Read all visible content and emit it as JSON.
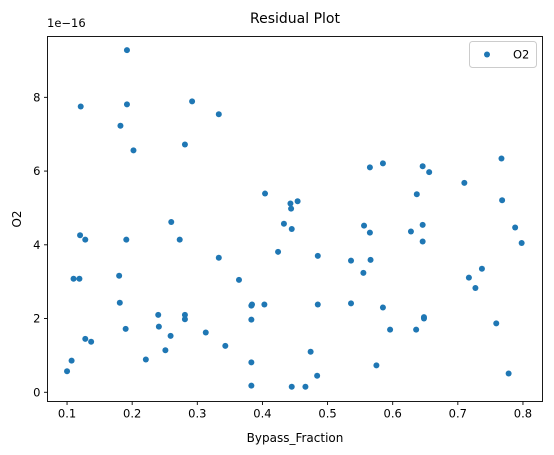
{
  "chart_data": {
    "type": "scatter",
    "title": "Residual Plot",
    "xlabel": "Bypass_Fraction",
    "ylabel": "O2",
    "offset_text": "1e−16",
    "xlim": [
      0.07,
      0.83
    ],
    "ylim": [
      -0.25,
      9.65
    ],
    "xticks": [
      0.1,
      0.2,
      0.3,
      0.4,
      0.5,
      0.6,
      0.7,
      0.8
    ],
    "xtick_labels": [
      "0.1",
      "0.2",
      "0.3",
      "0.4",
      "0.5",
      "0.6",
      "0.7",
      "0.8"
    ],
    "yticks": [
      0,
      2,
      4,
      6,
      8
    ],
    "ytick_labels": [
      "0",
      "2",
      "4",
      "6",
      "8"
    ],
    "grid": false,
    "legend_position": "top-right",
    "series": [
      {
        "name": "O2",
        "color": "#1f77b4",
        "x": [
          0.1,
          0.107,
          0.11,
          0.119,
          0.12,
          0.121,
          0.128,
          0.128,
          0.137,
          0.18,
          0.181,
          0.182,
          0.19,
          0.191,
          0.192,
          0.192,
          0.202,
          0.221,
          0.24,
          0.241,
          0.251,
          0.259,
          0.26,
          0.273,
          0.281,
          0.281,
          0.281,
          0.292,
          0.313,
          0.333,
          0.333,
          0.343,
          0.364,
          0.383,
          0.383,
          0.383,
          0.383,
          0.384,
          0.403,
          0.404,
          0.424,
          0.433,
          0.443,
          0.444,
          0.445,
          0.445,
          0.454,
          0.466,
          0.474,
          0.484,
          0.485,
          0.485,
          0.536,
          0.536,
          0.555,
          0.556,
          0.565,
          0.565,
          0.566,
          0.575,
          0.585,
          0.585,
          0.596,
          0.628,
          0.636,
          0.637,
          0.646,
          0.646,
          0.646,
          0.648,
          0.648,
          0.656,
          0.71,
          0.717,
          0.727,
          0.737,
          0.759,
          0.767,
          0.768,
          0.778,
          0.788,
          0.798
        ],
        "y": [
          0.57,
          0.86,
          3.08,
          3.08,
          4.26,
          7.75,
          1.45,
          4.14,
          1.37,
          3.16,
          2.43,
          7.23,
          1.72,
          4.14,
          7.81,
          9.28,
          6.56,
          0.89,
          2.1,
          1.78,
          1.14,
          1.53,
          4.62,
          4.14,
          2.1,
          1.98,
          6.72,
          7.89,
          1.62,
          7.54,
          3.65,
          1.26,
          3.05,
          2.35,
          1.97,
          0.81,
          0.18,
          2.38,
          2.38,
          5.39,
          3.81,
          4.57,
          5.12,
          4.98,
          4.43,
          0.15,
          5.18,
          0.15,
          1.1,
          0.45,
          2.38,
          3.7,
          3.57,
          2.41,
          3.24,
          4.52,
          6.1,
          4.33,
          3.59,
          0.73,
          6.21,
          2.3,
          1.7,
          4.36,
          1.7,
          5.37,
          4.09,
          6.13,
          4.54,
          2.04,
          2.0,
          5.97,
          5.68,
          3.11,
          2.83,
          3.35,
          1.87,
          6.34,
          5.21,
          0.51,
          4.47,
          4.05
        ]
      }
    ]
  }
}
